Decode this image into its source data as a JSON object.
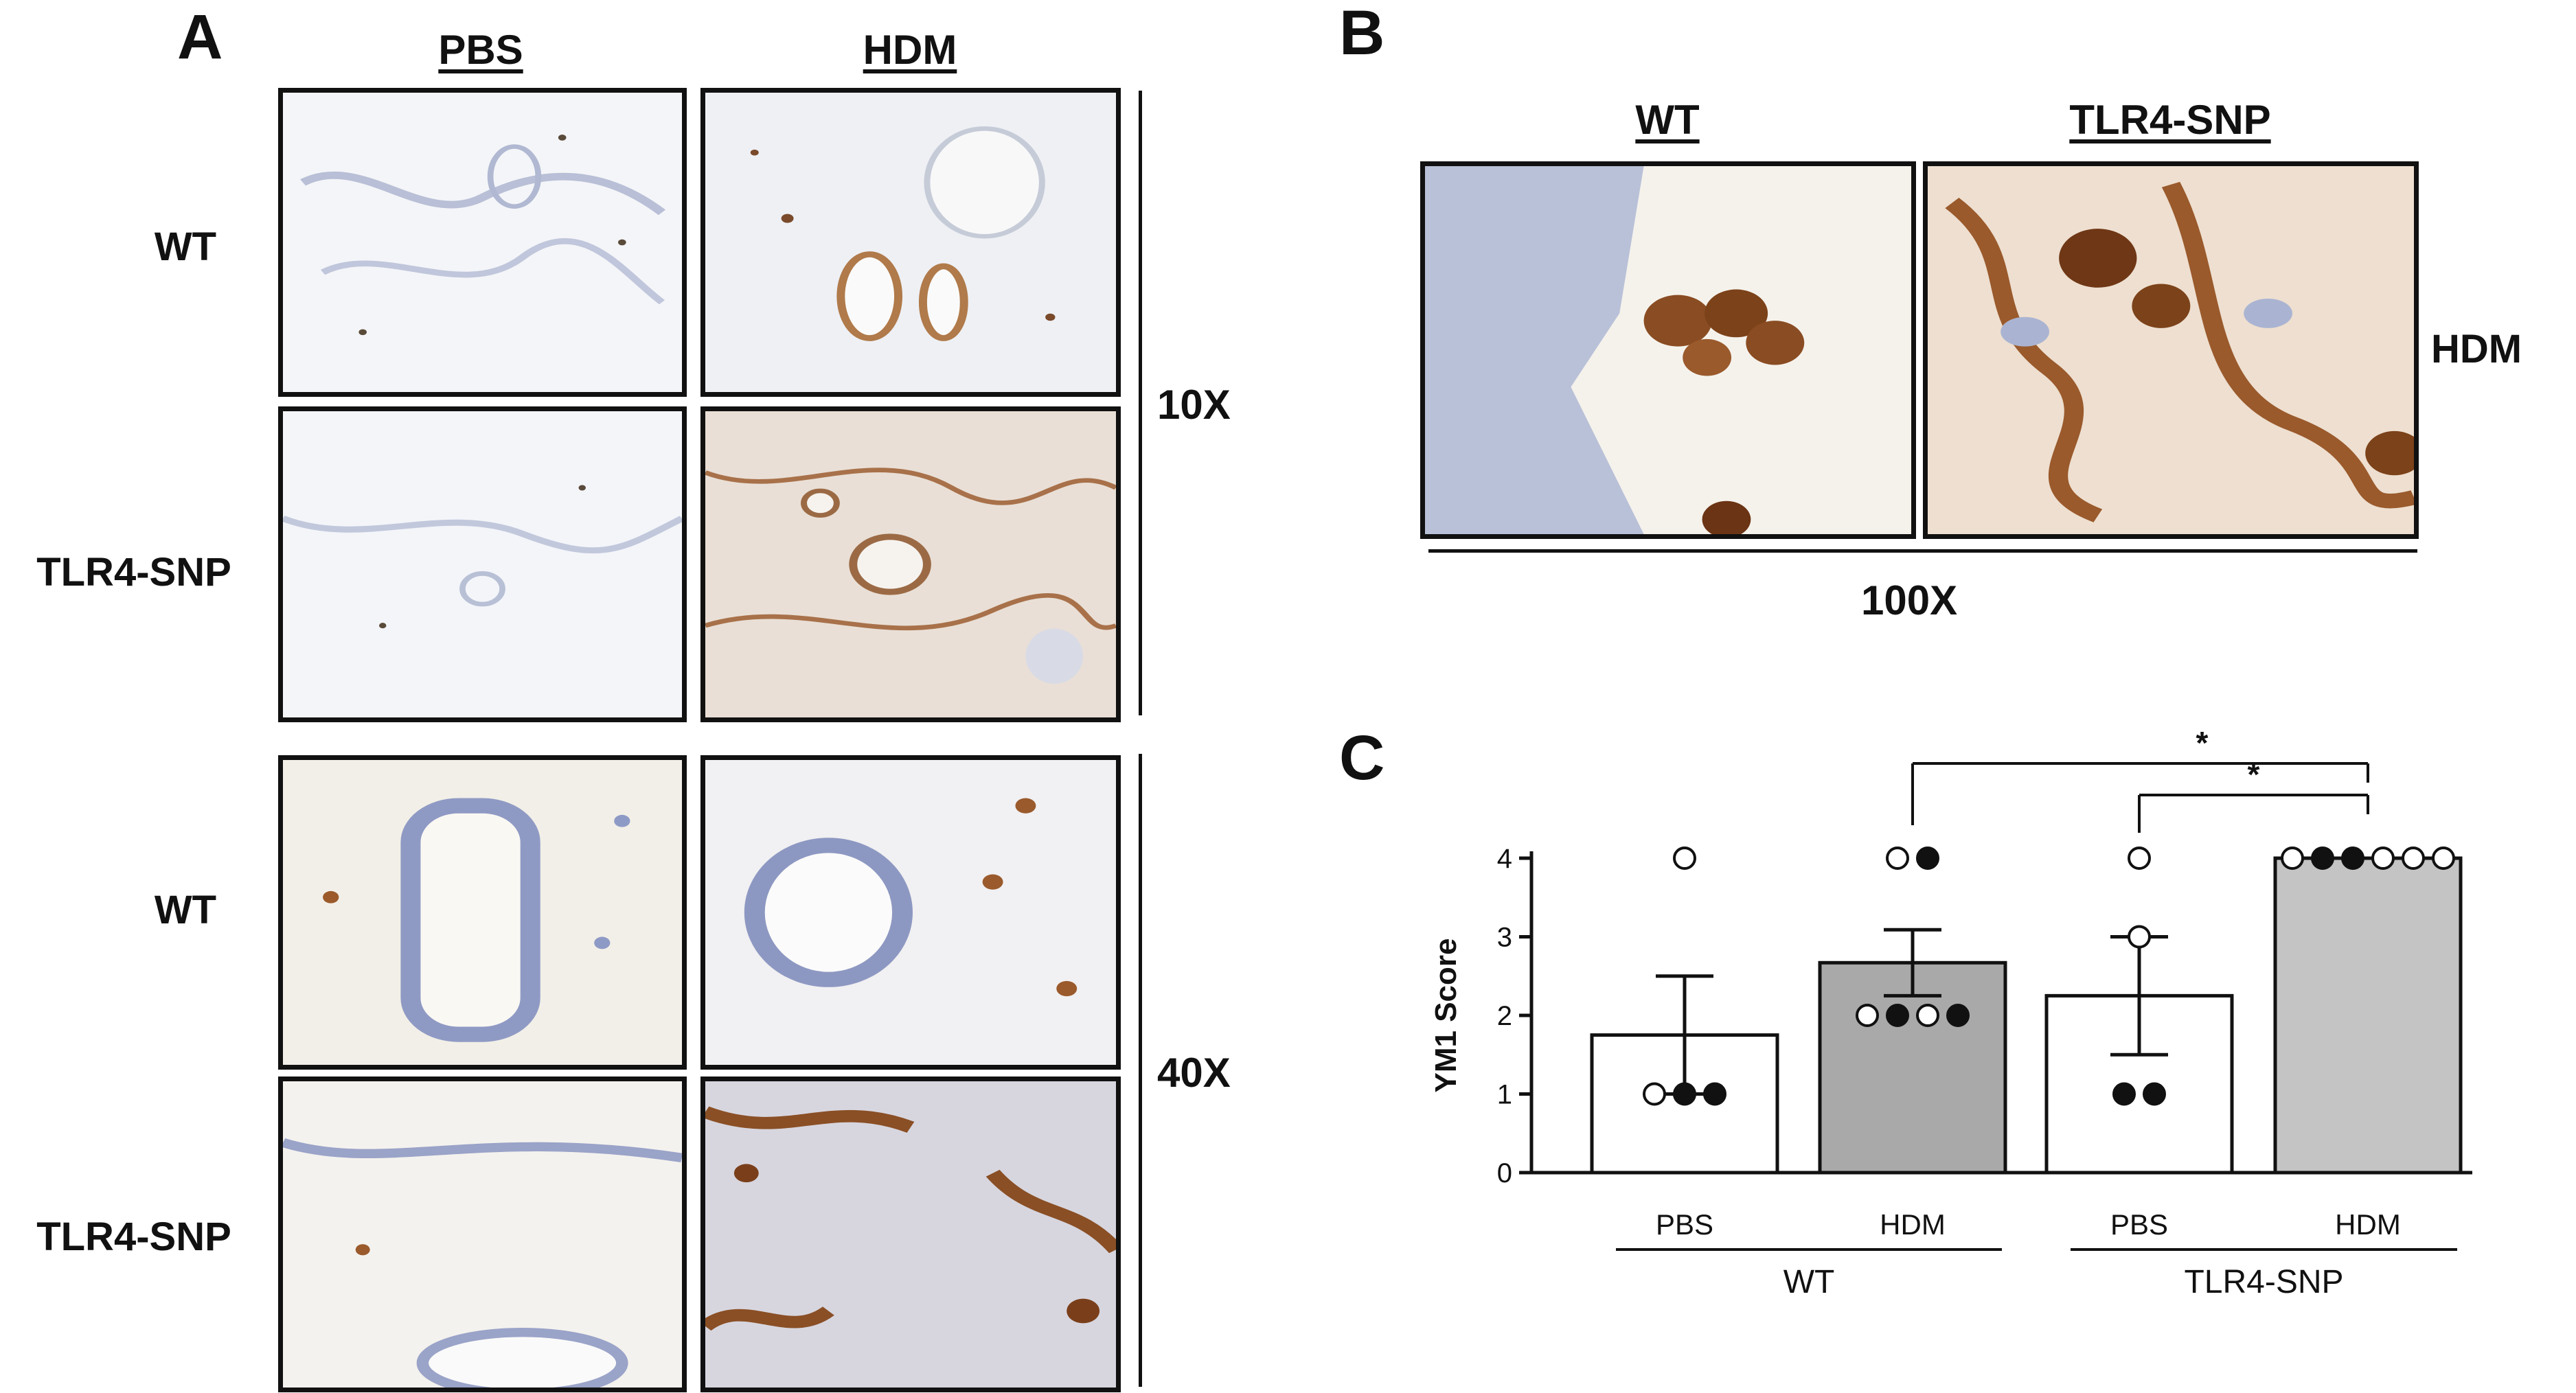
{
  "panelA": {
    "letter": "A",
    "col_headers": [
      "PBS",
      "HDM"
    ],
    "rows_10x": [
      "WT",
      "TLR4-SNP"
    ],
    "rows_40x": [
      "WT",
      "TLR4-SNP"
    ],
    "mag_10x": "10X",
    "mag_40x": "40X"
  },
  "panelB": {
    "letter": "B",
    "col_headers": [
      "WT",
      "TLR4-SNP"
    ],
    "row_label": "HDM",
    "magnification": "100X"
  },
  "panelC": {
    "letter": "C",
    "groups": [
      "WT",
      "TLR4-SNP"
    ],
    "significance": [
      "*",
      "*"
    ]
  },
  "chart_data": {
    "type": "bar",
    "categories": [
      "PBS",
      "HDM",
      "PBS",
      "HDM"
    ],
    "group_labels": [
      "WT",
      "WT",
      "TLR4-SNP",
      "TLR4-SNP"
    ],
    "means": [
      1.75,
      2.67,
      2.25,
      4.0
    ],
    "sem": [
      0.75,
      0.42,
      0.75,
      0.0
    ],
    "bar_colors": [
      "#ffffff",
      "#a9a9a9",
      "#ffffff",
      "#c4c4c4"
    ],
    "points": [
      [
        {
          "y": 4,
          "filled": false
        },
        {
          "y": 1,
          "filled": false
        },
        {
          "y": 1,
          "filled": true
        },
        {
          "y": 1,
          "filled": true
        }
      ],
      [
        {
          "y": 4,
          "filled": false
        },
        {
          "y": 4,
          "filled": true
        },
        {
          "y": 2,
          "filled": false
        },
        {
          "y": 2,
          "filled": true
        },
        {
          "y": 2,
          "filled": false
        },
        {
          "y": 2,
          "filled": true
        }
      ],
      [
        {
          "y": 4,
          "filled": false
        },
        {
          "y": 3,
          "filled": false
        },
        {
          "y": 1,
          "filled": true
        },
        {
          "y": 1,
          "filled": true
        }
      ],
      [
        {
          "y": 4,
          "filled": false
        },
        {
          "y": 4,
          "filled": true
        },
        {
          "y": 4,
          "filled": true
        },
        {
          "y": 4,
          "filled": false
        },
        {
          "y": 4,
          "filled": false
        },
        {
          "y": 4,
          "filled": false
        }
      ]
    ],
    "ylabel": "YM1 Score",
    "xlabel": "",
    "ylim": [
      0,
      4
    ],
    "yticks": [
      0,
      1,
      2,
      3,
      4
    ],
    "comparisons": [
      {
        "from": 1,
        "to": 3,
        "label": "*"
      },
      {
        "from": 2,
        "to": 3,
        "label": "*"
      }
    ]
  }
}
